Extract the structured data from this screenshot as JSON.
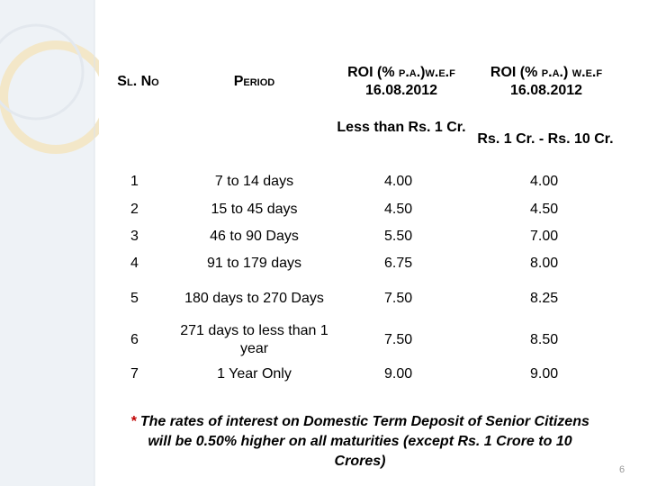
{
  "header": {
    "sl_no": "Sl. No",
    "period": "Period",
    "roi_1": [
      "ROI (% p.a.)w.e.f",
      "16.08.2012"
    ],
    "roi_2": [
      "ROI (% p.a.) w.e.f",
      "16.08.2012"
    ],
    "sub_1": "Less than Rs. 1 Cr.",
    "sub_2": "Rs. 1 Cr. - Rs. 10 Cr."
  },
  "table": {
    "rows": [
      [
        "1",
        "7 to 14 days",
        "4.00",
        "4.00"
      ],
      [
        "2",
        "15 to 45 days",
        "4.50",
        "4.50"
      ],
      [
        "3",
        "46 to 90 Days",
        "5.50",
        "7.00"
      ],
      [
        "4",
        "91 to 179 days",
        "6.75",
        "8.00"
      ],
      [
        "5",
        "180 days to 270 Days",
        "7.50",
        "8.25"
      ],
      [
        "6",
        "271 days to less than 1 year",
        "7.50",
        "8.50"
      ],
      [
        "7",
        "1 Year Only",
        "9.00",
        "9.00"
      ]
    ]
  },
  "footnote": {
    "mark": "*",
    "text": "The rates of interest on Domestic Term Deposit of Senior Citizens will be 0.50% higher on all maturities (except Rs. 1 Crore to 10 Crores)"
  },
  "page_number": "6"
}
